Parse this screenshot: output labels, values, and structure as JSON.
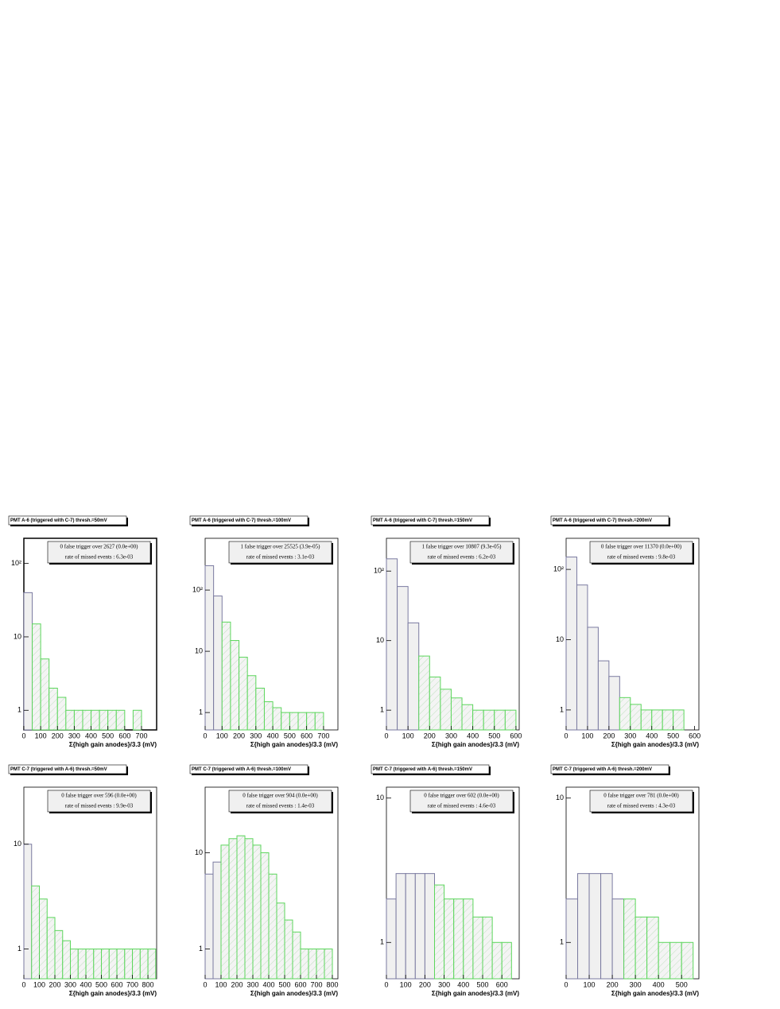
{
  "chart_data": [
    {
      "type": "histogram",
      "title": "PMT A-6  (triggered with C-7)  thresh.=50mV",
      "xlabel": "Σ{high gain anodes}/3.3  (mV)",
      "annotations": [
        "0 false trigger over 2627 (0.0e+00)",
        "rate of missed events : 6.3e-03"
      ],
      "bins": [
        0,
        50,
        100,
        150,
        200,
        250,
        300,
        350,
        400,
        450,
        500,
        550,
        600,
        650,
        700,
        750
      ],
      "series": [
        {
          "color": "#7a7aa0",
          "values": [
            40,
            null,
            null,
            null,
            null,
            null,
            null,
            null,
            null,
            null,
            null,
            null,
            null,
            null,
            null
          ]
        },
        {
          "color": "#5cd65c",
          "values": [
            null,
            15,
            5,
            2,
            1.5,
            1,
            1,
            1,
            1,
            1,
            1,
            1,
            0,
            1,
            0
          ]
        }
      ],
      "xlim": [
        0,
        790
      ],
      "xticks": [
        0,
        100,
        200,
        300,
        400,
        500,
        600,
        700
      ],
      "ylim": [
        0.54,
        220
      ],
      "yticks": [
        1,
        10,
        {
          "value": 100,
          "label": "10²"
        }
      ],
      "log_y": true
    },
    {
      "type": "histogram",
      "title": "PMT A-6  (triggered with C-7)  thresh.=100mV",
      "xlabel": "Σ{high gain anodes}/3.3  (mV)",
      "annotations": [
        "1 false trigger over 25525 (3.9e-05)",
        "rate of missed events : 3.1e-03"
      ],
      "bins": [
        0,
        50,
        100,
        150,
        200,
        250,
        300,
        350,
        400,
        450,
        500,
        550,
        600,
        650,
        700,
        750
      ],
      "series": [
        {
          "color": "#7a7aa0",
          "values": [
            250,
            80,
            null,
            null,
            null,
            null,
            null,
            null,
            null,
            null,
            null,
            null,
            null,
            null,
            null
          ]
        },
        {
          "color": "#5cd65c",
          "values": [
            null,
            null,
            30,
            15,
            8,
            4,
            2.5,
            1.5,
            1.2,
            1,
            1,
            1,
            1,
            1,
            0
          ]
        }
      ],
      "xlim": [
        0,
        785
      ],
      "xticks": [
        0,
        100,
        200,
        300,
        400,
        500,
        600,
        700
      ],
      "ylim": [
        0.52,
        700
      ],
      "yticks": [
        1,
        10,
        {
          "value": 100,
          "label": "10²"
        }
      ],
      "log_y": true
    },
    {
      "type": "histogram",
      "title": "PMT A-6  (triggered with C-7)  thresh.=150mV",
      "xlabel": "Σ{high gain anodes}/3.3  (mV)",
      "annotations": [
        "1 false trigger over 10807 (9.3e-05)",
        "rate of missed events : 6.2e-03"
      ],
      "bins": [
        0,
        50,
        100,
        150,
        200,
        250,
        300,
        350,
        400,
        450,
        500,
        550,
        600
      ],
      "series": [
        {
          "color": "#7a7aa0",
          "values": [
            150,
            60,
            18,
            null,
            null,
            null,
            null,
            null,
            null,
            null,
            null,
            null
          ]
        },
        {
          "color": "#5cd65c",
          "values": [
            null,
            null,
            null,
            6,
            3,
            2,
            1.5,
            1.2,
            1,
            1,
            1,
            1
          ]
        }
      ],
      "xlim": [
        0,
        615
      ],
      "xticks": [
        0,
        100,
        200,
        300,
        400,
        500,
        600
      ],
      "ylim": [
        0.52,
        296
      ],
      "yticks": [
        1,
        10,
        {
          "value": 100,
          "label": "10²"
        }
      ],
      "log_y": true
    },
    {
      "type": "histogram",
      "title": "PMT A-6  (triggered with C-7)  thresh.=200mV",
      "xlabel": "Σ{high gain anodes}/3.3  (mV)",
      "annotations": [
        "0 false trigger over 11370 (0.0e+00)",
        "rate of missed events : 9.8e-03"
      ],
      "bins": [
        0,
        50,
        100,
        150,
        200,
        250,
        300,
        350,
        400,
        450,
        500,
        550,
        600
      ],
      "series": [
        {
          "color": "#7a7aa0",
          "values": [
            150,
            60,
            15,
            5,
            3,
            null,
            null,
            null,
            null,
            null,
            null,
            null
          ]
        },
        {
          "color": "#5cd65c",
          "values": [
            null,
            null,
            null,
            null,
            null,
            1.5,
            1.2,
            1,
            1,
            1,
            1,
            0
          ]
        }
      ],
      "xlim": [
        0,
        620
      ],
      "xticks": [
        0,
        100,
        200,
        300,
        400,
        500,
        600
      ],
      "ylim": [
        0.52,
        277
      ],
      "yticks": [
        1,
        10,
        {
          "value": 100,
          "label": "10²"
        }
      ],
      "log_y": true
    },
    {
      "type": "histogram",
      "title": "PMT C-7  (triggered with A-6)  thresh.=50mV",
      "xlabel": "Σ{high gain anodes}/3.3  (mV)",
      "annotations": [
        "0 false trigger over 596 (0.0e+00)",
        "rate of missed events : 9.9e-03"
      ],
      "bins": [
        0,
        50,
        100,
        150,
        200,
        250,
        300,
        350,
        400,
        450,
        500,
        550,
        600,
        650,
        700,
        750,
        800,
        850
      ],
      "series": [
        {
          "color": "#7a7aa0",
          "values": [
            10,
            null,
            null,
            null,
            null,
            null,
            null,
            null,
            null,
            null,
            null,
            null,
            null,
            null,
            null,
            null,
            null
          ]
        },
        {
          "color": "#5cd65c",
          "values": [
            null,
            4,
            3,
            2,
            1.5,
            1.2,
            1,
            1,
            1,
            1,
            1,
            1,
            1,
            1,
            1,
            1,
            1
          ]
        }
      ],
      "xlim": [
        0,
        856
      ],
      "xticks": [
        0,
        100,
        200,
        300,
        400,
        500,
        600,
        700,
        800
      ],
      "ylim": [
        0.52,
        35
      ],
      "yticks": [
        1,
        10
      ],
      "log_y": true
    },
    {
      "type": "histogram",
      "title": "PMT C-7  (triggered with A-6)  thresh.=100mV",
      "xlabel": "Σ{high gain anodes}/3.3  (mV)",
      "annotations": [
        "0 false trigger over 904 (0.0e+00)",
        "rate of missed events : 1.4e-03"
      ],
      "bins": [
        0,
        50,
        100,
        150,
        200,
        250,
        300,
        350,
        400,
        450,
        500,
        550,
        600,
        650,
        700,
        750,
        800
      ],
      "series": [
        {
          "color": "#7a7aa0",
          "values": [
            6,
            8,
            null,
            null,
            null,
            null,
            null,
            null,
            null,
            null,
            null,
            null,
            null,
            null,
            null,
            null
          ]
        },
        {
          "color": "#5cd65c",
          "values": [
            null,
            null,
            12,
            14,
            15,
            14,
            12,
            10,
            6,
            3,
            2,
            1.5,
            1,
            1,
            1,
            1
          ]
        }
      ],
      "xlim": [
        0,
        835
      ],
      "xticks": [
        0,
        100,
        200,
        300,
        400,
        500,
        600,
        700,
        800
      ],
      "ylim": [
        0.49,
        48
      ],
      "yticks": [
        1,
        10
      ],
      "log_y": true
    },
    {
      "type": "histogram",
      "title": "PMT C-7  (triggered with A-6)  thresh.=150mV",
      "xlabel": "Σ{high gain anodes}/3.3  (mV)",
      "annotations": [
        "0 false trigger over 602 (0.0e+00)",
        "rate of missed events : 4.6e-03"
      ],
      "bins": [
        0,
        50,
        100,
        150,
        200,
        250,
        300,
        350,
        400,
        450,
        500,
        550,
        600,
        650
      ],
      "series": [
        {
          "color": "#7a7aa0",
          "values": [
            2,
            3,
            3,
            3,
            3,
            null,
            null,
            null,
            null,
            null,
            null,
            null,
            null
          ]
        },
        {
          "color": "#5cd65c",
          "values": [
            null,
            null,
            null,
            null,
            null,
            2.5,
            2,
            2,
            2,
            1.5,
            1.5,
            1,
            1
          ]
        }
      ],
      "xlim": [
        0,
        690
      ],
      "xticks": [
        0,
        100,
        200,
        300,
        400,
        500,
        600
      ],
      "ylim": [
        0.56,
        11.9
      ],
      "yticks": [
        1,
        10
      ],
      "log_y": true
    },
    {
      "type": "histogram",
      "title": "PMT C-7  (triggered with A-6)  thresh.=200mV",
      "xlabel": "Σ{high gain anodes}/3.3  (mV)",
      "annotations": [
        "0 false trigger over 781 (0.0e+00)",
        "rate of missed events : 4.3e-03"
      ],
      "bins": [
        0,
        50,
        100,
        150,
        200,
        250,
        300,
        350,
        400,
        450,
        500,
        550
      ],
      "series": [
        {
          "color": "#7a7aa0",
          "values": [
            2,
            3,
            3,
            3,
            2,
            null,
            null,
            null,
            null,
            null,
            null
          ]
        },
        {
          "color": "#5cd65c",
          "values": [
            null,
            null,
            null,
            null,
            null,
            2,
            1.5,
            1.5,
            1,
            1,
            1
          ]
        }
      ],
      "xlim": [
        0,
        575
      ],
      "xticks": [
        0,
        100,
        200,
        300,
        400,
        500
      ],
      "ylim": [
        0.56,
        11.9
      ],
      "yticks": [
        1,
        10
      ],
      "log_y": true
    }
  ]
}
